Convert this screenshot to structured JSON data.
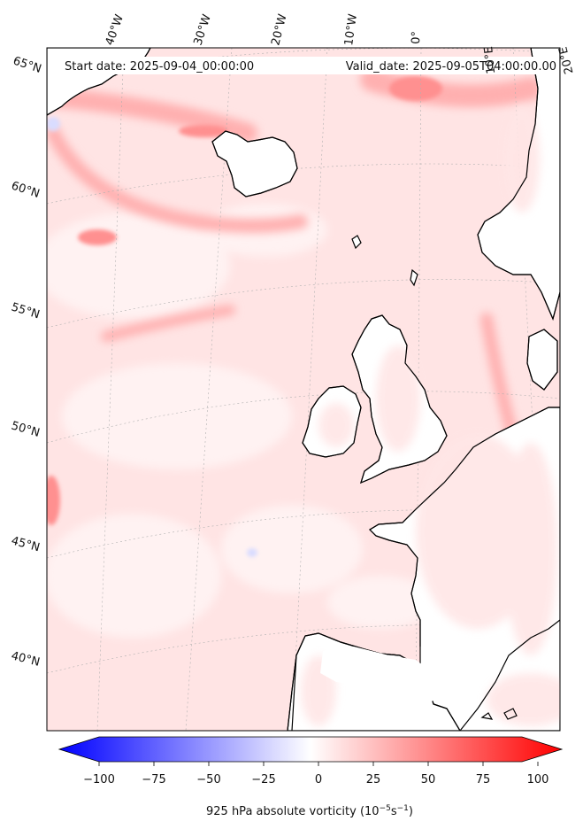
{
  "header": {
    "start_date": "Start date: 2025-09-04_00:00:00",
    "valid_date": "Valid_date: 2025-09-05T04:00:00.00"
  },
  "longitude_labels": [
    "40°W",
    "30°W",
    "20°W",
    "10°W",
    "0°",
    "10°E",
    "20°E"
  ],
  "latitude_labels": [
    "65°N",
    "60°N",
    "55°N",
    "50°N",
    "45°N",
    "40°N"
  ],
  "colorbar": {
    "label_main": "925 hPa absolute vorticity (10",
    "label_exp1": "−5",
    "label_mid": "s",
    "label_exp2": "−1",
    "label_end": ")",
    "min": -100,
    "max": 100,
    "ticks": [
      "−100",
      "−75",
      "−50",
      "−25",
      "0",
      "25",
      "50",
      "75",
      "100"
    ],
    "colors": {
      "low": "#0000ff",
      "mid": "#ffffff",
      "high": "#ff0000"
    }
  },
  "land_color": "#ffffff",
  "coastline_color": "#000000"
}
